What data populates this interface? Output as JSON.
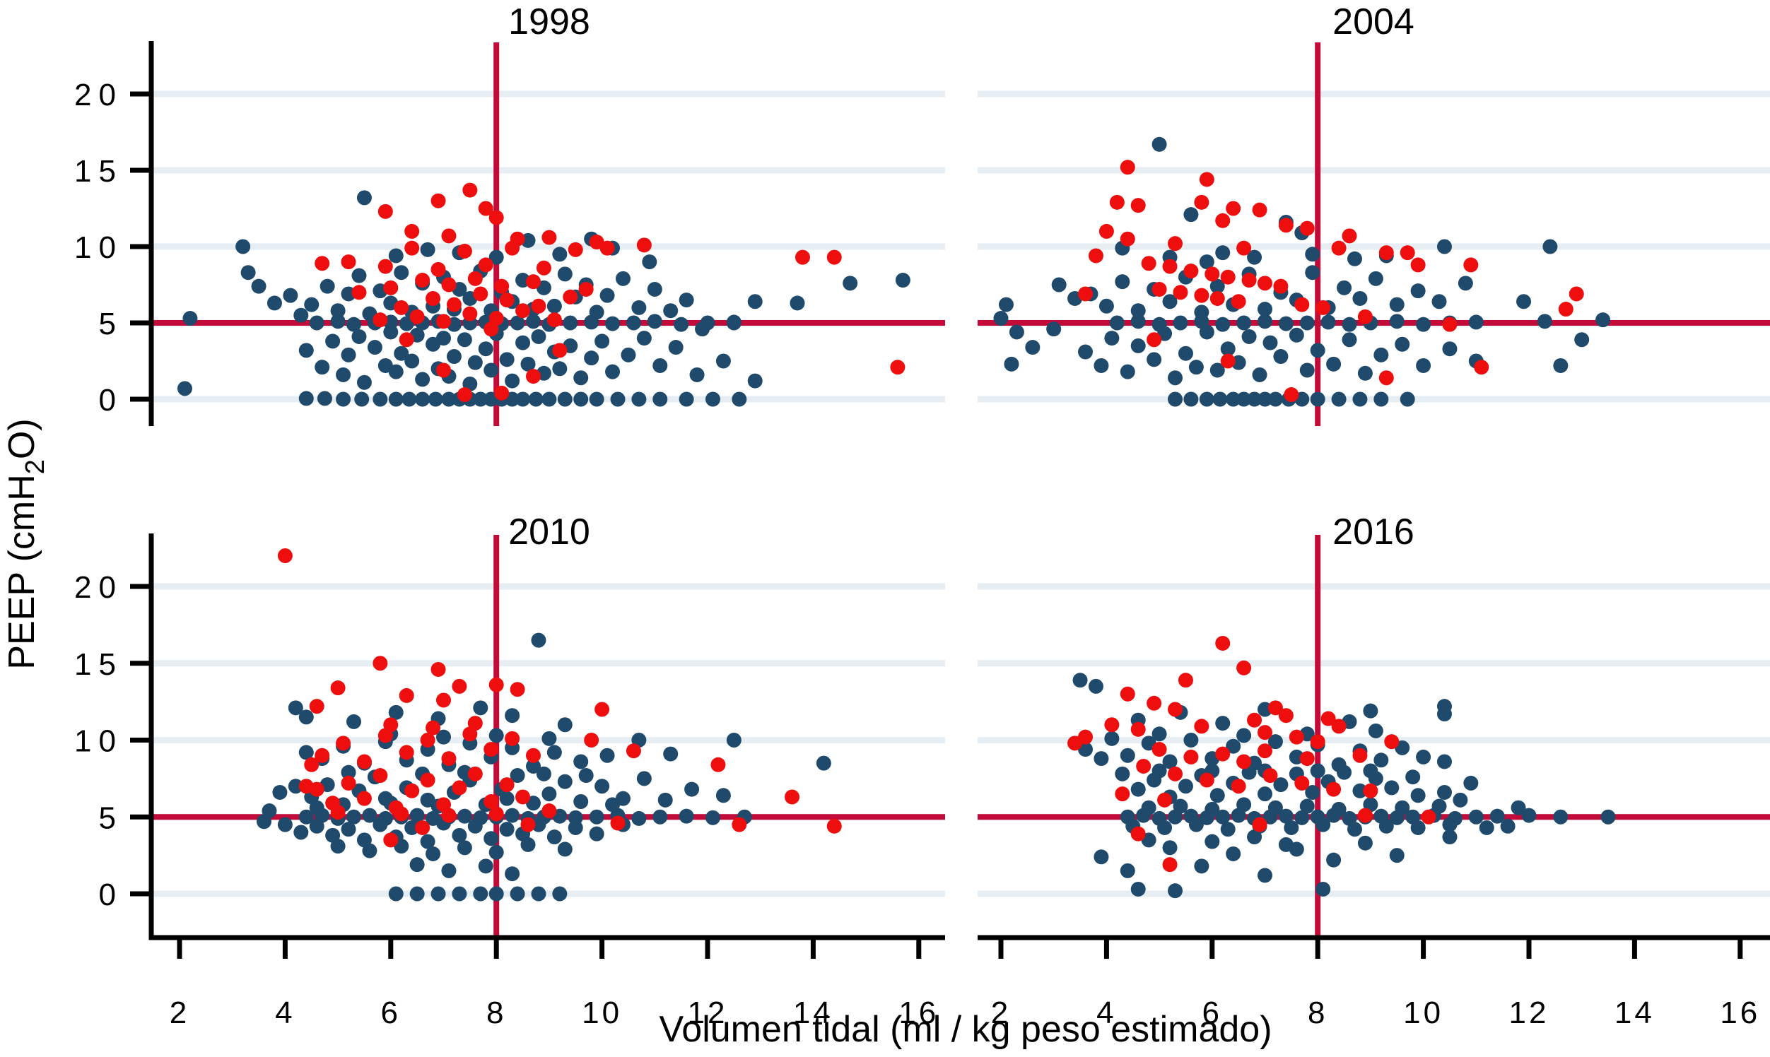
{
  "y_axis_label": {
    "pre": "PEEP (cmH",
    "sub": "2",
    "post": "O)"
  },
  "chart_data": {
    "type": "scatter",
    "title": "",
    "xlabel": "Volumen tidal (ml / kg peso estimado)",
    "ylabel": "PEEP (cmH2O)",
    "x_ticks": [
      "2",
      "4",
      "6",
      "8",
      "10",
      "12",
      "14",
      "16"
    ],
    "x_tick_values": [
      2,
      4,
      6,
      8,
      10,
      12,
      14,
      16
    ],
    "y_ticks": [
      "0",
      "5",
      "10",
      "15",
      "20"
    ],
    "y_tick_values": [
      0,
      5,
      10,
      15,
      20
    ],
    "xlim": [
      1.5,
      16.6
    ],
    "ylim": [
      -1.8,
      23.4
    ],
    "grid": "horizontal-only",
    "legend": "none",
    "ref_lines": {
      "x": 8,
      "y": 5
    },
    "colors": {
      "navy_points": "#1f4a6c",
      "red_points": "#ee0e0e",
      "ref_line": "#c20b38",
      "gridline": "#e7eef3",
      "axis": "#000000"
    },
    "panels": [
      {
        "title": "1998",
        "navy": "4.4,0.05 4.75,0.05 5.1,0 5.45,0 5.8,0 6.1,0 6.35,0 6.6,0 6.85,0 7.1,0 7.3,0 7.5,0 7.7,0 7.9,0 8.1,0 8.3,0 8.5,0 8.75,0 9,0 9.3,0 9.6,0 9.9,0 10.3,0 10.7,0 11.1,0 11.6,0 12.1,0 12.6,0 4.6,5 5,5.1 5.3,4.9 5.7,5 6,5.05 6.3,4.95 6.6,5 6.9,5.1 7.2,4.9 7.5,5 7.8,5.05 8.1,4.95 8.4,5 8.7,5.1 9,4.9 9.4,5 9.8,5.05 10.2,4.95 10.6,5 11,5.1 11.5,4.9 12,5 12.5,5.05 4.4,3.2 4.7,2.1 4.9,3.8 5.1,1.6 5.2,2.9 5.4,4.1 5.5,1.1 5.7,3.4 5.9,2.2 6,4.4 6.1,1.8 6.2,3 6.4,2.5 6.5,4.2 6.6,1.3 6.8,3.6 6.9,2 7,4 7.1,1.5 7.2,2.8 7.4,3.9 7.5,1 7.6,2.4 7.8,3.3 7.9,1.9 8,4.3 8.2,2.6 8.3,1.2 8.5,3.7 8.6,2.3 8.8,4.1 8.9,1.7 9.1,3.1 9.2,2 9.4,3.5 9.6,1.4 9.8,2.7 10,3.8 10.2,1.8 10.5,2.9 10.8,4 11.1,2.2 11.4,3.4 11.8,1.6 12.3,2.5 4.5,6.2 4.8,7.4 5,5.8 5.2,6.9 5.4,8.1 5.6,5.6 5.8,7.1 6,6.3 6.2,8.3 6.4,5.7 6.6,7.6 6.8,6.1 7,8 7.2,5.9 7.3,7.2 7.5,6.6 7.7,8.4 7.9,5.8 8.1,7 8.3,6.4 8.5,7.8 8.7,5.9 8.9,7.3 9.1,6.1 9.3,8.2 9.5,6.7 9.7,7.5 9.9,5.7 10.1,6.8 10.4,7.9 10.7,6 11,7.2 11.3,5.8 4.3,5.5 4.1,6.8 3.8,6.3 3.5,7.4 3.3,8.3 10.9,9 10.2,9.9 3.2,10 5.5,13.2 6.1,9.4 6.7,9.8 7.3,9.6 8,9.3 8.6,10.4 9.2,9.5 9.8,10.5 2.1,0.7 2.2,5.3 12.9,6.4 13.7,6.3 14.7,7.6 15.7,7.8 12.9,1.2 12.5,5 11.9,4.6 11.6,6.5",
        "red": "5.8,5.2 6.2,6 6.5,5.4 6.8,6.6 7,5.1 7.2,6.2 7.5,5.6 7.7,6.9 8,5.3 8.2,6.5 8.5,5.8 8.8,6.1 9.1,5.2 9.4,6.7 6,7.3 6.6,7.8 7.1,7.5 7.6,7.9 8.1,7.4 8.7,7.7 9.7,7.2 5.4,7 5.2,9 5.9,8.7 6.4,9.9 6.9,8.5 7.4,9.7 7.8,8.8 8.3,9.9 8.9,8.6 9.5,9.8 10.1,9.9 10.8,10.1 4.7,8.9 5.9,12.3 6.9,13 7.5,13.7 7.8,12.5 6.4,11 7.1,10.7 8.4,10.5 9,10.6 8,11.9 9.9,10.3 6.3,3.9 7,1.9 7.4,0.3 8.1,0.4 8.7,1.5 9.2,3.2 15.6,2.1 13.8,9.3 14.4,9.3 7.9,4.6"
      },
      {
        "title": "2004",
        "navy": "5.3,0 5.6,0 5.9,0 6.15,0 6.4,0 6.6,0 6.8,0 7,0 7.2,0 7.45,0 7.7,0 8,0 8.4,0 8.8,0 9.2,0 9.7,0 4.2,5 4.6,5.1 5,4.9 5.4,5 5.8,5.1 6.2,4.9 6.6,5 7,5.1 7.4,4.95 7.8,5 8.2,5.05 8.6,4.9 9,5 9.5,5.1 10,4.9 10.5,5 11,5.05 12.3,5.1 13.4,5.2 3.6,3.1 3.9,2.2 4.1,4 4.4,1.8 4.6,3.5 4.9,2.6 5.1,4.3 5.3,1.4 5.5,3 5.7,2.1 5.9,4.4 6.1,1.9 6.3,3.3 6.5,2.4 6.7,4.1 6.9,1.6 7.1,3.7 7.3,2.8 7.6,4.2 7.8,1.9 8,3.2 8.3,2.3 8.6,3.9 8.9,1.7 9.2,2.9 9.6,3.6 10,2.2 10.5,3.3 11,2.5 12.6,2.2 2.2,2.3 2.6,3.4 3.7,6.9 4,6.1 4.3,7.7 4.6,5.8 4.9,7.2 5.2,6.4 5.5,8 5.8,5.7 6.1,7.4 6.4,6.2 6.7,8.2 7,5.9 7.3,7 7.6,6.5 7.9,8.3 8.2,6 8.5,7.3 8.8,6.6 9.1,7.9 9.5,6.2 9.9,7.1 10.3,6.4 10.8,7.6 11.9,6.4 3.4,6.6 3.1,7.5 5,16.7 5.6,12.1 4.3,9.9 7.4,11.6 7.7,10.9 10.4,10 12.4,10 6.2,9.6 6.8,9.3 7.9,9.5 8.7,9.2 9.3,9.4 5.9,9 5.2,9.3 2,5.3 2.1,6.2 2.3,4.4 3,4.6 13,3.9",
        "red": "4.4,15.2 5.9,14.4 4.2,12.9 4.6,12.7 5.8,12.9 6.4,12.5 6.9,12.4 4,11 4.4,10.5 6.2,11.7 7.4,11.4 7.8,11.2 8.6,10.7 5.3,10.2 6.6,9.9 8.4,9.9 9.3,9.6 9.7,9.6 3.8,9.4 4.8,8.9 5.2,8.7 5.6,8.4 6,8.2 6.3,8 6.7,7.8 7,7.6 7.3,7.4 5,7.2 5.4,7 5.8,6.8 6.1,6.6 6.5,6.4 7.7,6.2 8.1,6 12.7,5.9 10.5,4.9 11.1,2.1 9.3,1.4 6.3,2.5 4.9,3.9 7.5,0.3 3.6,6.9 12.9,6.9 8.9,5.4 9.9,8.8 10.9,8.8"
      },
      {
        "title": "2010",
        "navy": "6.1,0 6.5,0 6.9,0 7.3,0 7.7,0 8,0 8.4,0 8.8,0 9.2,0 4.4,5 4.7,5.1 5,4.9 5.3,5 5.6,5.1 5.9,4.9 6.2,5 6.5,5.1 6.8,4.9 7.1,5 7.4,5.05 7.7,4.95 8,5 8.3,5.1 8.6,4.9 8.9,5 9.2,5.05 9.5,4.95 9.9,5 10.3,5.1 10.7,4.9 11.1,5 11.6,5.05 12.1,4.95 12.7,5 4.6,4.4 4.9,3.8 5.2,4.2 5.5,3.5 5.8,4.5 6.1,3.7 6.4,4.3 6.7,3.4 7,4.6 7.3,3.8 7.6,4.4 7.9,3.6 8.2,4.2 8.5,3.9 8.8,4.5 9.1,3.7 9.5,4.3 9.9,3.9 10.4,4.5 5,3.1 5.6,2.8 6.2,3.1 6.8,2.6 7.4,3 8,2.7 8.6,3.2 9.3,2.9 6.5,1.9 7.1,1.5 7.8,1.8 8.3,1.3 4.3,4 4,4.5 4.5,6.3 4.8,7.1 5.1,5.8 5.4,6.7 5.7,7.6 6,5.9 6.3,6.9 6.6,7.8 6.9,5.7 7.2,6.6 7.5,7.4 7.8,5.8 8.1,6.8 8.4,7.7 8.7,5.9 9,6.5 9.3,7.3 9.6,6 10,7 10.4,6.2 10.8,7.5 11.2,6.1 4.2,7 4.6,5.6 5.2,7.9 5.9,6.2 6.7,6.1 7.4,7.9 8.2,6.2 8.9,7.8 9.7,7.7 10.2,5.8 11.7,6.8 12.3,6.4 4.7,8.8 5.1,9.6 5.5,8.5 5.9,9.9 6.3,8.7 6.7,9.4 7.1,8.4 7.5,9.8 7.9,8.9 8.3,9.5 8.7,8.3 9.1,9.2 9.6,8.6 10.1,9 10.7,10 12.5,10 11.3,9.1 4.4,9.2 6,10.4 7,10.2 8,10.3 9,10.1 5.3,11.2 6.1,11.8 6.9,11.4 7.7,12.1 8.3,11.6 4.4,11.5 4.2,12.1 9.3,11 8.8,16.5 14.2,8.5 3.9,6.6 3.7,5.4 3.6,4.7",
        "red": "4.6,6.8 4.9,5.9 5.2,7.2 5.5,6.2 5.8,7.7 6.1,5.6 6.4,6.7 6.7,7.4 7,5.8 7.3,6.9 7.6,7.8 7.9,6 8.2,7.1 8.5,6.3 5,5.3 6.2,5.2 7.1,5.1 8,5.2 9,5.4 4.4,7 4.7,9 5.1,9.8 5.5,8.6 5.9,10.3 6.3,9.2 6.7,10 7.1,8.8 7.5,10.4 7.9,9.4 8.3,10.1 8.7,9 6,11 6.8,10.8 7.6,11.1 4.5,8.4 9.8,10 10.6,9.3 10,12 5.8,15 6.9,14.6 7.3,13.5 8,13.6 8.4,13.3 6.3,12.9 5,13.4 4.6,12.2 7,12.6 4,22 6,3.5 6.6,4.3 8.6,4.5 12.2,8.4 13.6,6.3 14.4,4.4 12.6,4.5 10.3,4.6"
      },
      {
        "title": "2016",
        "navy": "4.4,5 4.7,5.1 5,4.9 5.3,5 5.6,5.05 5.9,4.95 6.2,5 6.5,5.1 6.8,4.9 7.1,5 7.4,5.05 7.7,4.95 8,5 8.3,5.1 8.6,4.9 8.9,5 9.2,5.05 9.5,4.95 9.8,5 10.2,5.1 10.6,4.9 11,5 11.4,5.05 12,5.1 12.6,5 13.5,5 4.5,4.4 5.1,4.3 5.7,4.5 6.3,4.2 6.9,4.4 7.5,4.3 8.1,4.5 8.7,4.2 9.3,4.4 9.9,4.3 10.5,4.5 11.2,4.3 4.8,5.6 5.4,5.7 6,5.5 6.6,5.8 7.2,5.6 7.8,5.7 8.4,5.5 9,5.8 9.6,5.6 10.3,5.7 11.8,5.6 4.6,6.8 4.9,7.4 5.2,6.3 5.5,7 5.8,7.7 6.1,6.4 6.4,7.2 6.7,7.9 7,6.5 7.3,7.1 7.6,7.8 7.9,6.6 8.2,7.3 8.5,7.9 8.8,6.7 9.1,7.5 9.4,6.9 9.8,7.6 10.4,6.6 10.9,7.2 4.3,7.8 5,8 6,8 7,8 8,8 9,8 4.4,9 4.8,9.8 5.2,8.6 5.6,10 6,8.8 6.4,9.6 6.8,8.5 7.2,9.9 7.6,8.9 8,9.7 8.4,8.4 8.8,9.3 9.2,8.7 9.6,9.5 10,8.9 10.4,8.6 3.9,8.8 3.6,9.4 4.1,10.1 5,10.4 6.6,10.3 7.8,10.4 9.1,10.6 4.6,11.3 5.4,11.8 6.2,11.1 7,12 8.6,11.2 10.4,12.2 10.4,11.7 3.5,13.9 3.8,13.5 9,11.9 3.9,2.4 4.4,1.5 4.6,0.3 5.3,0.2 8.1,0.3 5.8,1.8 6.4,2.6 7,1.2 7.6,2.9 8.3,2.2 8.9,3.3 9.5,2.5 6,3.4 6.8,3.7 7.4,3.2 10.5,3.7 5.2,3 4.8,3.5 9.9,6.4 10.7,6.1 11.6,4.4",
        "red": "6.2,16.3 6.6,14.7 5.5,13.9 4.4,13 4.9,12.4 5.3,12 4.1,11 3.6,10.2 3.4,9.8 4.6,10.7 5.8,10.9 6.8,11.3 7.2,12.1 7.4,11.6 7,10.5 7.6,10.2 8.2,11.4 8.4,10.9 8,9.9 5,9.4 5.6,8.9 6.2,9.1 6.6,8.6 7,9.3 7.8,8.8 8.8,9 9.4,9.9 4.7,8.3 5.3,7.8 5.9,7.4 6.5,7 7.1,7.7 7.7,7.2 8.3,6.8 4.3,6.5 5.1,6.1 6.9,4.5 4.6,3.9 5.2,1.9 8.9,5.1 10.1,5 9,6.7"
      }
    ]
  }
}
